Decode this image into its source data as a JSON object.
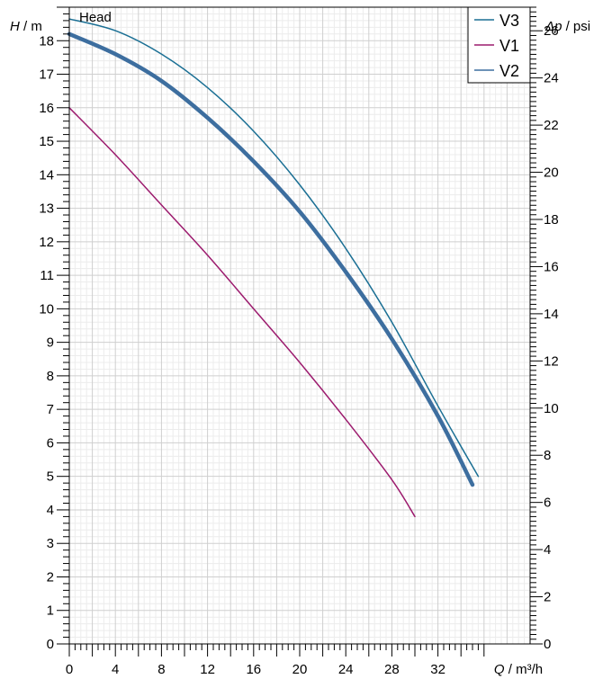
{
  "chart_data": {
    "type": "line",
    "title": "Head",
    "xlabel": {
      "var": "Q",
      "unit": " / m³/h"
    },
    "ylabel": {
      "var": "H",
      "unit": " / m"
    },
    "y2label": {
      "var": "Δp",
      "unit": " / psi"
    },
    "xlim": [
      0,
      36
    ],
    "ylim": [
      0,
      19
    ],
    "y2lim": [
      0,
      27
    ],
    "xticks": [
      0,
      4,
      8,
      12,
      16,
      20,
      24,
      28,
      32
    ],
    "yticks": [
      0,
      1,
      2,
      3,
      4,
      5,
      6,
      7,
      8,
      9,
      10,
      11,
      12,
      13,
      14,
      15,
      16,
      17,
      18
    ],
    "y2ticks": [
      0,
      2,
      4,
      6,
      8,
      10,
      12,
      14,
      16,
      18,
      20,
      22,
      24,
      26
    ],
    "grid": true,
    "legend_position": "top-right",
    "series": [
      {
        "name": "V3",
        "color": "#1a6f94",
        "width": 1.5,
        "legend_order": 0,
        "x": [
          0,
          4,
          8,
          12,
          16,
          20,
          24,
          28,
          32,
          35.5
        ],
        "y": [
          18.65,
          18.3,
          17.6,
          16.6,
          15.3,
          13.7,
          11.8,
          9.6,
          7.1,
          5.0
        ]
      },
      {
        "name": "V1",
        "color": "#9c1b6e",
        "width": 1.5,
        "legend_order": 1,
        "x": [
          0,
          4,
          8,
          12,
          16,
          20,
          24,
          28,
          30
        ],
        "y": [
          16.0,
          14.6,
          13.1,
          11.6,
          10.0,
          8.4,
          6.7,
          4.9,
          3.8
        ]
      },
      {
        "name": "V2",
        "color": "#3d6e9f",
        "width": 4.5,
        "legend_order": 2,
        "x": [
          0,
          4,
          8,
          12,
          16,
          20,
          24,
          28,
          32,
          35
        ],
        "y": [
          18.2,
          17.6,
          16.8,
          15.7,
          14.4,
          12.9,
          11.1,
          9.1,
          6.8,
          4.75
        ]
      }
    ]
  }
}
